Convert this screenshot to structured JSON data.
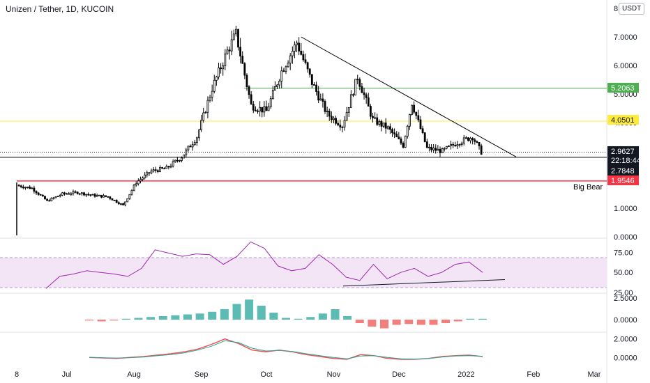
{
  "header": {
    "title": "Unizen / Tether, 1D, KUCOIN",
    "currency": "USDT"
  },
  "annotations": {
    "big_bear": "Big Bear"
  },
  "price_labels": {
    "level_green": "5.2063",
    "level_yellow": "4.0501",
    "current": "2.9627",
    "countdown": "22:18:44",
    "level_black": "2.7848",
    "level_red": "1.9546"
  },
  "colors": {
    "up": "#26a69a",
    "down": "#ef5350",
    "candle": "#000000",
    "green_line": "#4caf50",
    "yellow_line": "#ffeb3b",
    "red_line": "#f23645",
    "rsi": "#9c27b0",
    "rsi_band": "#e1bee7"
  },
  "chart_data": [
    {
      "type": "candlestick",
      "title": "Unizen / Tether, 1D, KUCOIN",
      "x_ticks": [
        "8",
        "Jul",
        "Aug",
        "Sep",
        "Oct",
        "Nov",
        "Dec",
        "2022",
        "Feb",
        "Mar"
      ],
      "y_ticks": [
        "0.0000",
        "1.0000",
        "2.0000",
        "3.0000",
        "4.0000",
        "5.0000",
        "6.0000",
        "7.0000",
        "8"
      ],
      "ylim": [
        0,
        8
      ],
      "horizontal_levels": [
        5.2063,
        4.0501,
        2.7848,
        1.9546
      ],
      "current_price": 2.9627,
      "close_path": [
        {
          "date": "2021-06-08",
          "close": 1.8
        },
        {
          "date": "2021-06-15",
          "close": 1.7
        },
        {
          "date": "2021-06-22",
          "close": 1.25
        },
        {
          "date": "2021-06-29",
          "close": 1.5
        },
        {
          "date": "2021-07-06",
          "close": 1.55
        },
        {
          "date": "2021-07-13",
          "close": 1.45
        },
        {
          "date": "2021-07-20",
          "close": 1.4
        },
        {
          "date": "2021-07-27",
          "close": 1.1
        },
        {
          "date": "2021-08-02",
          "close": 1.9
        },
        {
          "date": "2021-08-09",
          "close": 2.3
        },
        {
          "date": "2021-08-16",
          "close": 2.4
        },
        {
          "date": "2021-08-23",
          "close": 2.8
        },
        {
          "date": "2021-08-30",
          "close": 3.5
        },
        {
          "date": "2021-09-06",
          "close": 5.2
        },
        {
          "date": "2021-09-13",
          "close": 6.5
        },
        {
          "date": "2021-09-17",
          "close": 7.1
        },
        {
          "date": "2021-09-24",
          "close": 4.6
        },
        {
          "date": "2021-10-01",
          "close": 4.4
        },
        {
          "date": "2021-10-08",
          "close": 5.8
        },
        {
          "date": "2021-10-15",
          "close": 6.8
        },
        {
          "date": "2021-10-22",
          "close": 5.4
        },
        {
          "date": "2021-10-29",
          "close": 4.3
        },
        {
          "date": "2021-11-05",
          "close": 3.9
        },
        {
          "date": "2021-11-12",
          "close": 5.6
        },
        {
          "date": "2021-11-19",
          "close": 4.1
        },
        {
          "date": "2021-11-26",
          "close": 3.8
        },
        {
          "date": "2021-12-03",
          "close": 3.2
        },
        {
          "date": "2021-12-07",
          "close": 4.7
        },
        {
          "date": "2021-12-14",
          "close": 3.1
        },
        {
          "date": "2021-12-21",
          "close": 3.0
        },
        {
          "date": "2021-12-28",
          "close": 3.3
        },
        {
          "date": "2022-01-04",
          "close": 3.5
        },
        {
          "date": "2022-01-08",
          "close": 2.9627
        }
      ],
      "trendline": {
        "from": {
          "date": "2021-10-17",
          "price": 7.0
        },
        "to": {
          "date": "2022-01-24",
          "price": 2.8
        }
      }
    },
    {
      "type": "line",
      "name": "RSI",
      "y_ticks": [
        "25.00",
        "50.00",
        "75.00"
      ],
      "band": [
        30,
        70
      ],
      "ylim": [
        25,
        90
      ],
      "values": [
        30,
        45,
        48,
        52,
        50,
        48,
        45,
        55,
        78,
        74,
        70,
        73,
        72,
        60,
        70,
        88,
        80,
        58,
        52,
        55,
        72,
        60,
        44,
        40,
        60,
        42,
        50,
        55,
        45,
        50,
        60,
        63,
        50
      ],
      "support_line": {
        "from": 33,
        "to": 41
      }
    },
    {
      "type": "bar",
      "name": "MACD histogram",
      "y_ticks": [
        "0.0000",
        "2.5000"
      ],
      "ylim": [
        -1.2,
        2.8
      ],
      "values": [
        -0.1,
        -0.2,
        -0.1,
        0.1,
        0.2,
        0.3,
        0.4,
        0.5,
        0.6,
        0.7,
        0.9,
        1.2,
        1.8,
        2.3,
        1.6,
        0.8,
        0.2,
        0.1,
        0.3,
        0.7,
        1.2,
        0.4,
        -0.4,
        -0.8,
        -1.0,
        -0.6,
        -0.5,
        -0.6,
        -0.6,
        -0.4,
        -0.2,
        0.1,
        0.1
      ]
    },
    {
      "type": "line",
      "name": "MACD",
      "y_ticks": [
        "0.0000",
        "2.0000"
      ],
      "ylim": [
        -0.5,
        2.5
      ],
      "series": [
        {
          "values": [
            0.0,
            -0.05,
            -0.1,
            0.0,
            0.1,
            0.25,
            0.4,
            0.6,
            0.9,
            1.4,
            2.0,
            1.5,
            0.8,
            0.6,
            0.8,
            0.6,
            0.3,
            0.1,
            -0.1,
            -0.2,
            0.3,
            0.2,
            -0.1,
            -0.2,
            -0.2,
            -0.1,
            0.1,
            0.2,
            0.25,
            0.1
          ]
        },
        {
          "values": [
            0.0,
            -0.03,
            -0.06,
            -0.02,
            0.05,
            0.18,
            0.3,
            0.5,
            0.8,
            1.2,
            1.8,
            1.6,
            1.0,
            0.7,
            0.75,
            0.65,
            0.4,
            0.2,
            0.0,
            -0.15,
            0.15,
            0.2,
            0.0,
            -0.15,
            -0.18,
            -0.12,
            0.05,
            0.15,
            0.2,
            0.12
          ]
        }
      ]
    }
  ]
}
